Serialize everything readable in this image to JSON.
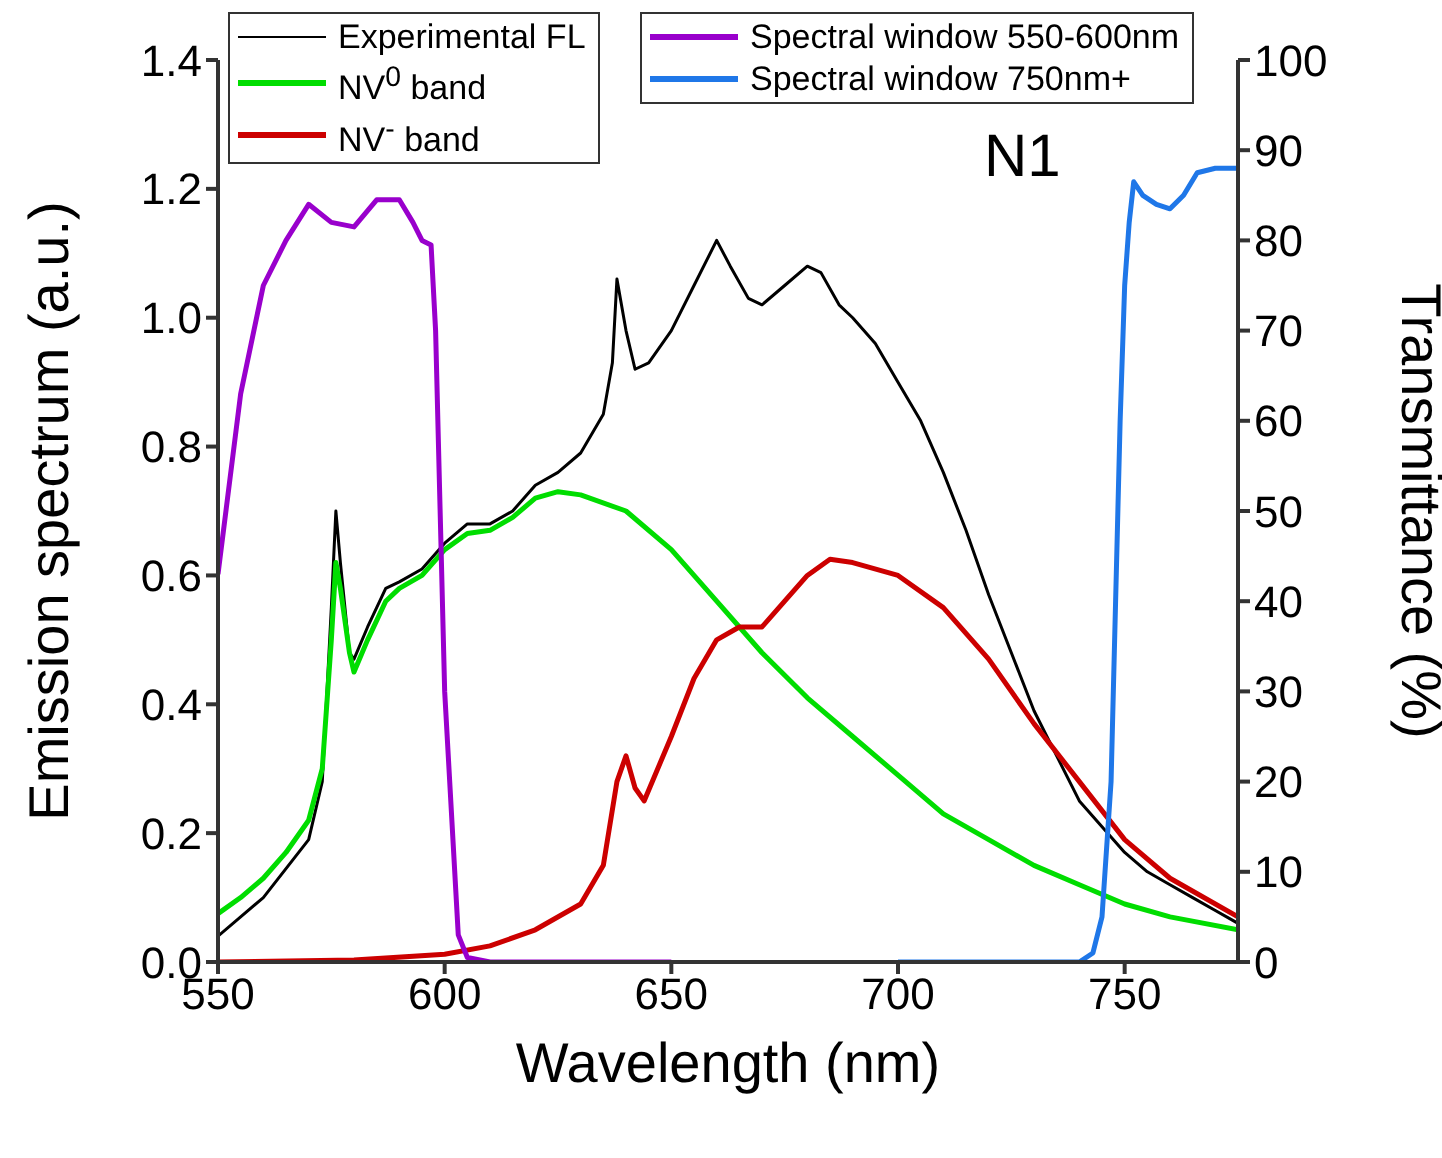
{
  "chart_data": {
    "type": "line",
    "xlabel": "Wavelength (nm)",
    "ylabel": "Emission spectrum (a.u.)",
    "y2label": "Transmittance (%)",
    "annotations": [
      "N1"
    ],
    "legend": "top",
    "xlim": [
      550,
      775
    ],
    "xticks": [
      550,
      600,
      650,
      700,
      750
    ],
    "ylim": [
      0,
      1.4
    ],
    "yticks": [
      {
        "value": 0,
        "label": "0.0"
      },
      {
        "value": 0.2,
        "label": "0.2"
      },
      {
        "value": 0.4,
        "label": "0.4"
      },
      {
        "value": 0.6,
        "label": "0.6"
      },
      {
        "value": 0.8,
        "label": "0.8"
      },
      {
        "value": 1,
        "label": "1.0"
      },
      {
        "value": 1.2,
        "label": "1.2"
      },
      {
        "value": 1.4,
        "label": "1.4"
      }
    ],
    "y2lim": [
      0,
      100
    ],
    "y2ticks": [
      0,
      10,
      20,
      30,
      40,
      50,
      60,
      70,
      80,
      90,
      100
    ],
    "series": [
      {
        "name": "Experimental FL",
        "color": "#000000",
        "x": [
          550,
          560,
          570,
          573,
          575,
          576,
          577,
          579,
          580,
          583,
          587,
          590,
          595,
          600,
          605,
          610,
          615,
          620,
          625,
          630,
          635,
          637,
          638,
          640,
          642,
          645,
          650,
          655,
          660,
          663,
          667,
          670,
          675,
          680,
          683,
          687,
          690,
          695,
          700,
          705,
          710,
          715,
          720,
          725,
          730,
          735,
          740,
          745,
          750,
          755,
          760,
          765,
          770,
          775
        ],
        "values": [
          0.04,
          0.1,
          0.19,
          0.28,
          0.55,
          0.7,
          0.62,
          0.48,
          0.47,
          0.52,
          0.58,
          0.59,
          0.61,
          0.65,
          0.68,
          0.68,
          0.7,
          0.74,
          0.76,
          0.79,
          0.85,
          0.93,
          1.06,
          0.98,
          0.92,
          0.93,
          0.98,
          1.05,
          1.12,
          1.08,
          1.03,
          1.02,
          1.05,
          1.08,
          1.07,
          1.02,
          1.0,
          0.96,
          0.9,
          0.84,
          0.76,
          0.67,
          0.57,
          0.48,
          0.39,
          0.32,
          0.25,
          0.21,
          0.17,
          0.14,
          0.12,
          0.1,
          0.08,
          0.06
        ]
      },
      {
        "name": "NV$^{0}$ band",
        "color": "#00dd00",
        "x": [
          550,
          555,
          560,
          565,
          570,
          573,
          575,
          576,
          577,
          579,
          580,
          583,
          587,
          590,
          595,
          600,
          605,
          610,
          615,
          620,
          625,
          630,
          640,
          650,
          660,
          670,
          680,
          690,
          700,
          710,
          720,
          730,
          740,
          750,
          760,
          775
        ],
        "values": [
          0.075,
          0.1,
          0.13,
          0.17,
          0.22,
          0.3,
          0.5,
          0.62,
          0.58,
          0.48,
          0.45,
          0.5,
          0.56,
          0.58,
          0.6,
          0.64,
          0.665,
          0.67,
          0.69,
          0.72,
          0.73,
          0.725,
          0.7,
          0.64,
          0.56,
          0.48,
          0.41,
          0.35,
          0.29,
          0.23,
          0.19,
          0.15,
          0.12,
          0.09,
          0.07,
          0.05
        ]
      },
      {
        "name": "NV$^{-}$ band",
        "color": "#cc0000",
        "x": [
          550,
          580,
          600,
          610,
          620,
          630,
          635,
          638,
          640,
          642,
          644,
          650,
          655,
          660,
          665,
          670,
          675,
          680,
          685,
          690,
          700,
          710,
          720,
          730,
          740,
          750,
          760,
          775
        ],
        "values": [
          0,
          0.003,
          0.012,
          0.025,
          0.05,
          0.09,
          0.15,
          0.28,
          0.32,
          0.27,
          0.25,
          0.35,
          0.44,
          0.5,
          0.52,
          0.52,
          0.56,
          0.6,
          0.625,
          0.62,
          0.6,
          0.55,
          0.47,
          0.37,
          0.28,
          0.19,
          0.13,
          0.07
        ]
      },
      {
        "name": "Spectral window 550-600nm",
        "color": "#9900cc",
        "axis": "y2",
        "x": [
          550,
          555,
          560,
          565,
          570,
          575,
          580,
          585,
          590,
          593,
          595,
          597,
          598,
          600,
          603,
          605,
          610,
          650
        ],
        "values": [
          43,
          63,
          75,
          80,
          84,
          82,
          81.5,
          84.5,
          84.5,
          82,
          80,
          79.5,
          70,
          30,
          3,
          0.5,
          0,
          0
        ]
      },
      {
        "name": "Spectral window 750nm+",
        "color": "#1f77e8",
        "axis": "y2",
        "x": [
          700,
          740,
          743,
          745,
          747,
          748,
          749,
          750,
          751,
          752,
          754,
          757,
          760,
          763,
          766,
          770,
          775
        ],
        "values": [
          0,
          0,
          1,
          5,
          20,
          40,
          60,
          75,
          82,
          86.5,
          85,
          84,
          83.5,
          85,
          87.5,
          88,
          88
        ]
      }
    ]
  }
}
